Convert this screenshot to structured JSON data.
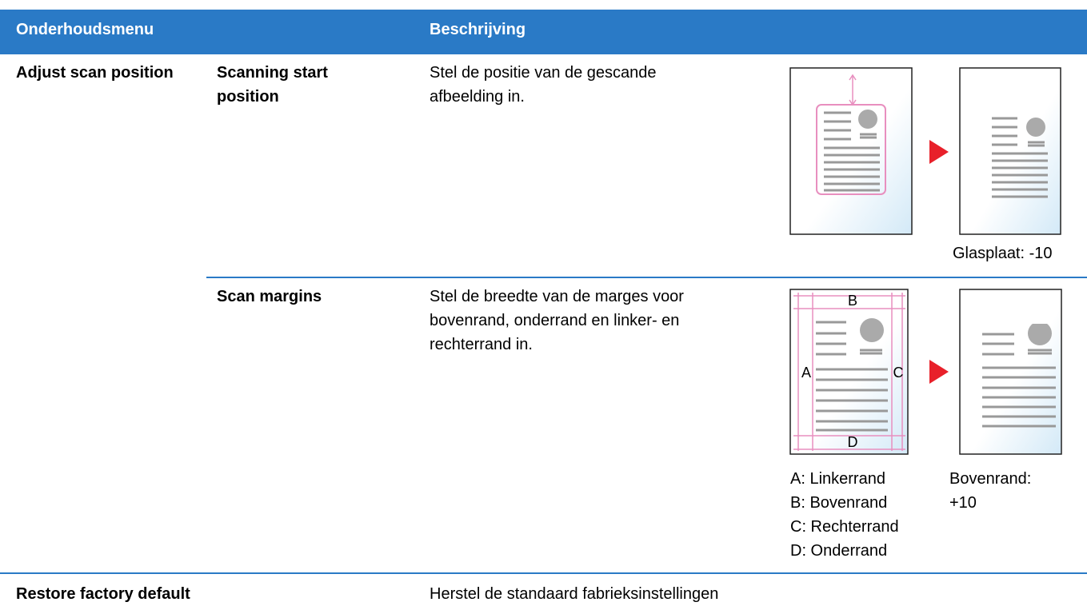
{
  "header": {
    "columns": [
      "Onderhoudsmenu",
      "Beschrijving"
    ]
  },
  "rows": [
    {
      "menu": "Adjust scan position",
      "items": [
        {
          "name": "Scanning start position",
          "description": "Stel de positie van de gescande afbeelding in.",
          "caption": "Glasplaat: -10"
        },
        {
          "name": "Scan margins",
          "description": "Stel de breedte van de marges voor bovenrand, onderrand en linker- en rechterrand in.",
          "figure_labels": [
            "A",
            "B",
            "C",
            "D"
          ],
          "legend": [
            "A: Linkerrand",
            "B: Bovenrand",
            "C: Rechterrand",
            "D: Onderrand"
          ],
          "caption": "Bovenrand: +10"
        }
      ]
    },
    {
      "menu": "Restore factory default",
      "description": "Herstel de standaard fabrieksinstellingen"
    }
  ]
}
